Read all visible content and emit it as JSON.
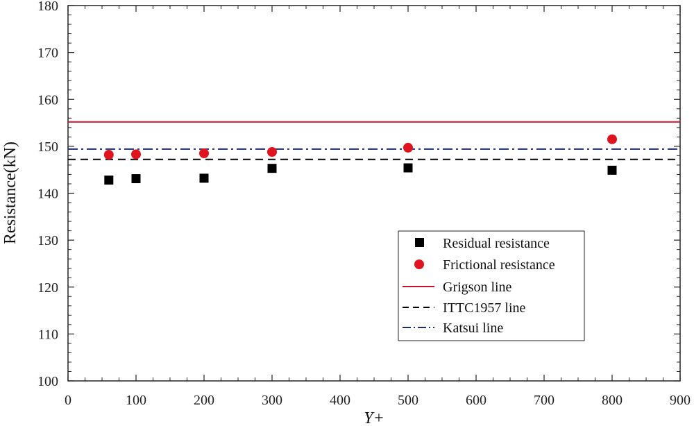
{
  "chart_data": {
    "type": "scatter",
    "title": "",
    "xlabel": "Y+",
    "ylabel": "Resistance(kN)",
    "xlim": [
      0,
      900
    ],
    "ylim": [
      100,
      180
    ],
    "x_ticks": [
      0,
      100,
      200,
      300,
      400,
      500,
      600,
      700,
      800,
      900
    ],
    "y_ticks": [
      100,
      110,
      120,
      130,
      140,
      150,
      160,
      170,
      180
    ],
    "grid": false,
    "legend_position": "bottom-right",
    "series": [
      {
        "name": "Residual resistance",
        "kind": "scatter",
        "marker": "square",
        "color": "#000000",
        "x": [
          60,
          100,
          200,
          300,
          500,
          800
        ],
        "y": [
          142.8,
          143.1,
          143.2,
          145.3,
          145.4,
          144.9
        ]
      },
      {
        "name": "Frictional resistance",
        "kind": "scatter",
        "marker": "circle",
        "color": "#e0141e",
        "x": [
          60,
          100,
          200,
          300,
          500,
          800
        ],
        "y": [
          148.2,
          148.3,
          148.5,
          148.8,
          149.7,
          151.5
        ]
      },
      {
        "name": "Grigson line",
        "kind": "hline",
        "style": "solid",
        "color": "#c8102e",
        "y": 155.2
      },
      {
        "name": "ITTC1957 line",
        "kind": "hline",
        "style": "dashed",
        "color": "#000000",
        "y": 147.2
      },
      {
        "name": "Katsui line",
        "kind": "hline",
        "style": "dashdot",
        "color": "#1f2a6b",
        "y": 149.4
      }
    ]
  }
}
